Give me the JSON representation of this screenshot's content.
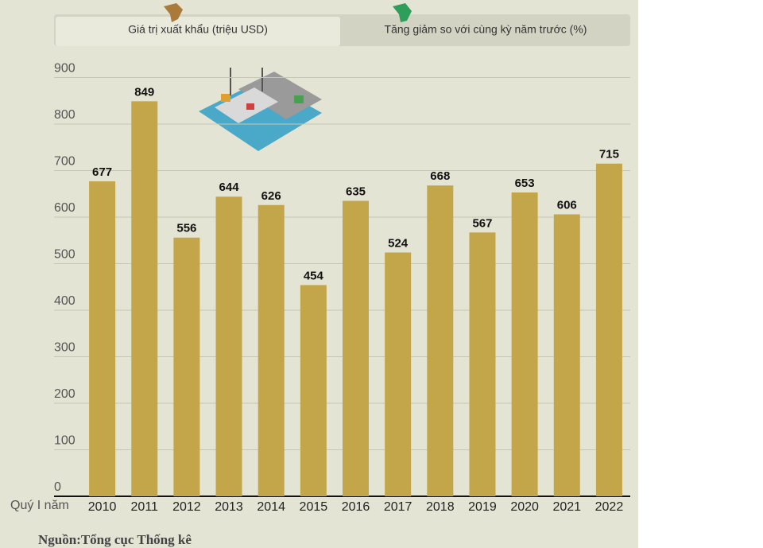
{
  "tabs": [
    "Giá trị xuất khẩu (triệu USD)",
    "Tăng giảm so với cùng kỳ năm trước (%)"
  ],
  "chart_data": {
    "type": "bar",
    "x_label": "Quý I năm",
    "categories": [
      "2010",
      "2011",
      "2012",
      "2013",
      "2014",
      "2015",
      "2016",
      "2017",
      "2018",
      "2019",
      "2020",
      "2021",
      "2022"
    ],
    "values": [
      677,
      849,
      556,
      644,
      626,
      454,
      635,
      524,
      668,
      567,
      653,
      606,
      715
    ],
    "color": "#c4a64a",
    "ylim": [
      0,
      900
    ],
    "yticks": [
      0,
      100,
      200,
      300,
      400,
      500,
      600,
      700,
      800,
      900
    ],
    "grid": true
  },
  "source": "Nguồn:Tổng cục Thống kê"
}
